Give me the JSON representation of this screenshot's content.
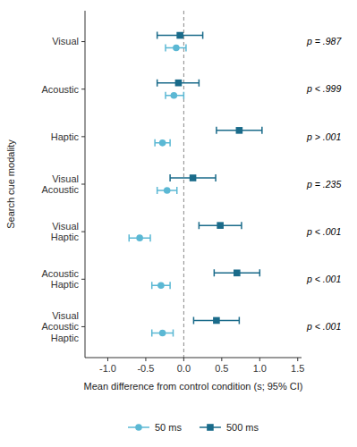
{
  "chart_data": {
    "type": "forest",
    "categories": [
      "Visual",
      "Acoustic",
      "Haptic",
      "Visual\nAcoustic",
      "Visual\nHaptic",
      "Acoustic\nHaptic",
      "Visual\nAcoustic\nHaptic"
    ],
    "series": [
      {
        "name": "50 ms",
        "color": "#5BB8D4",
        "marker": "circle",
        "values": [
          -0.1,
          -0.13,
          -0.28,
          -0.22,
          -0.58,
          -0.3,
          -0.28
        ],
        "ci_low": [
          -0.24,
          -0.24,
          -0.38,
          -0.35,
          -0.72,
          -0.42,
          -0.42
        ],
        "ci_high": [
          0.03,
          0.0,
          -0.18,
          -0.09,
          -0.44,
          -0.18,
          -0.14
        ]
      },
      {
        "name": "500 ms",
        "color": "#1A6B8A",
        "marker": "square",
        "values": [
          -0.05,
          -0.07,
          0.73,
          0.12,
          0.48,
          0.7,
          0.43
        ],
        "ci_low": [
          -0.35,
          -0.35,
          0.43,
          -0.18,
          0.2,
          0.4,
          0.13
        ],
        "ci_high": [
          0.25,
          0.2,
          1.03,
          0.42,
          0.76,
          1.0,
          0.73
        ]
      }
    ],
    "annotations": [
      "p = .987",
      "p < .999",
      "p > .001",
      "p = .235",
      "p < .001",
      "p < .001",
      "p < .001"
    ],
    "reference_line": 0,
    "xlim": [
      -1.3,
      1.55
    ],
    "xticks": [
      {
        "value": -1,
        "label": "-1.0"
      },
      -0.5,
      {
        "value": 0,
        "label": "0.0"
      },
      0.5,
      {
        "value": 1,
        "label": "1.0"
      },
      1.5
    ],
    "xlabel": "Mean difference from control condition (s; 95% CI)",
    "ylabel": "Search cue modality",
    "legend": "bottom",
    "grid": false
  }
}
